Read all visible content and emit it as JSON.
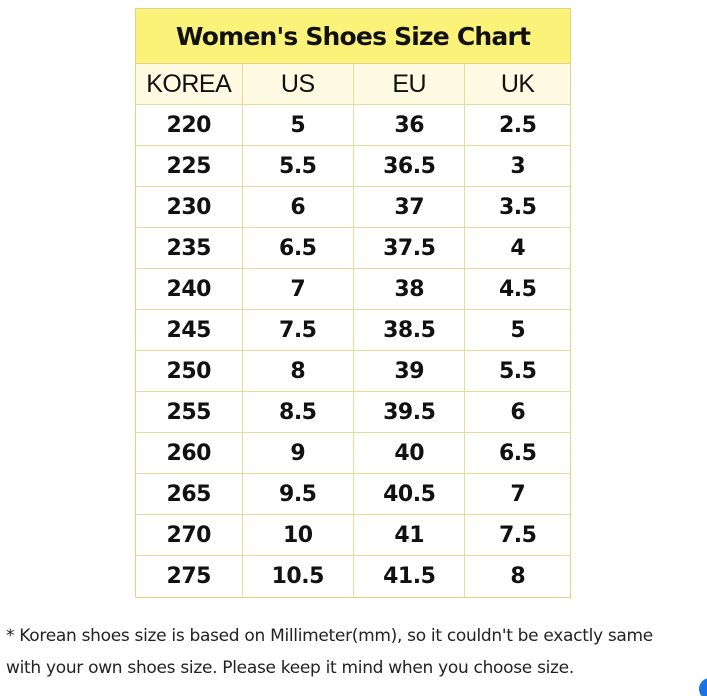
{
  "chart": {
    "title": "Women's Shoes Size Chart",
    "headers": [
      "KOREA",
      "US",
      "EU",
      "UK"
    ],
    "rows": [
      [
        "220",
        "5",
        "36",
        "2.5"
      ],
      [
        "225",
        "5.5",
        "36.5",
        "3"
      ],
      [
        "230",
        "6",
        "37",
        "3.5"
      ],
      [
        "235",
        "6.5",
        "37.5",
        "4"
      ],
      [
        "240",
        "7",
        "38",
        "4.5"
      ],
      [
        "245",
        "7.5",
        "38.5",
        "5"
      ],
      [
        "250",
        "8",
        "39",
        "5.5"
      ],
      [
        "255",
        "8.5",
        "39.5",
        "6"
      ],
      [
        "260",
        "9",
        "40",
        "6.5"
      ],
      [
        "265",
        "9.5",
        "40.5",
        "7"
      ],
      [
        "270",
        "10",
        "41",
        "7.5"
      ],
      [
        "275",
        "10.5",
        "41.5",
        "8"
      ]
    ]
  },
  "note": {
    "line1": "* Korean shoes size is based on Millimeter(mm), so it couldn't be exactly same",
    "line2": "with your own shoes size. Please keep it mind when you choose size."
  },
  "colors": {
    "title_bg": "#fbf27a",
    "header_bg": "#fffbe3",
    "border": "#ddd58a"
  }
}
